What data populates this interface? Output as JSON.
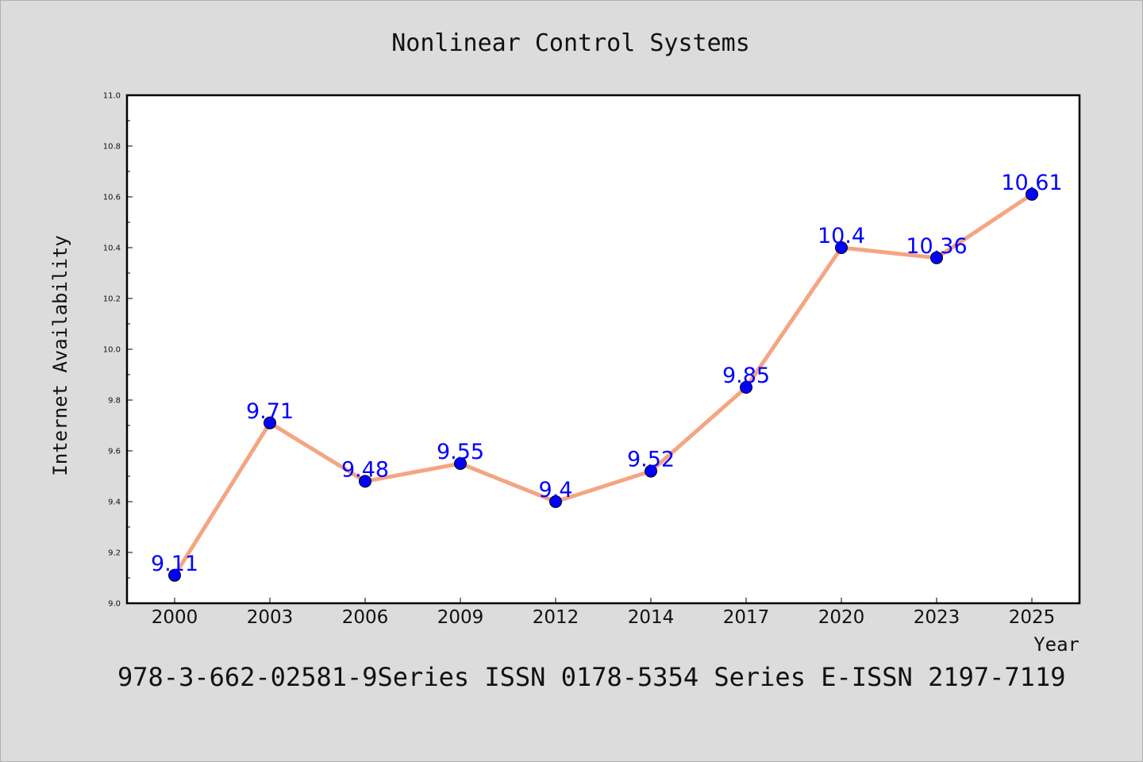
{
  "chart_data": {
    "type": "line",
    "title": "Nonlinear Control Systems",
    "xlabel": "Year",
    "ylabel": "Internet Availability",
    "categories": [
      "2000",
      "2003",
      "2006",
      "2009",
      "2012",
      "2014",
      "2017",
      "2020",
      "2023",
      "2025"
    ],
    "series": [
      {
        "values": [
          9.11,
          9.71,
          9.48,
          9.55,
          9.4,
          9.52,
          9.85,
          10.4,
          10.36,
          10.61
        ],
        "labels": [
          "9.11",
          "9.71",
          "9.48",
          "9.55",
          "9.4",
          "9.52",
          "9.85",
          "10.4",
          "10.36",
          "10.61"
        ]
      }
    ],
    "ylim": [
      9.0,
      11.0
    ],
    "yticks": [
      "9.0",
      "9.2",
      "9.4",
      "9.6",
      "9.8",
      "10.0",
      "10.2",
      "10.4",
      "10.6",
      "10.8",
      "11.0"
    ],
    "grid": false,
    "colors": {
      "line": "#f4a582",
      "marker": "#0000ff",
      "data_label": "#0000ff"
    }
  },
  "footer": "978-3-662-02581-9Series ISSN 0178-5354 Series E-ISSN 2197-7119"
}
